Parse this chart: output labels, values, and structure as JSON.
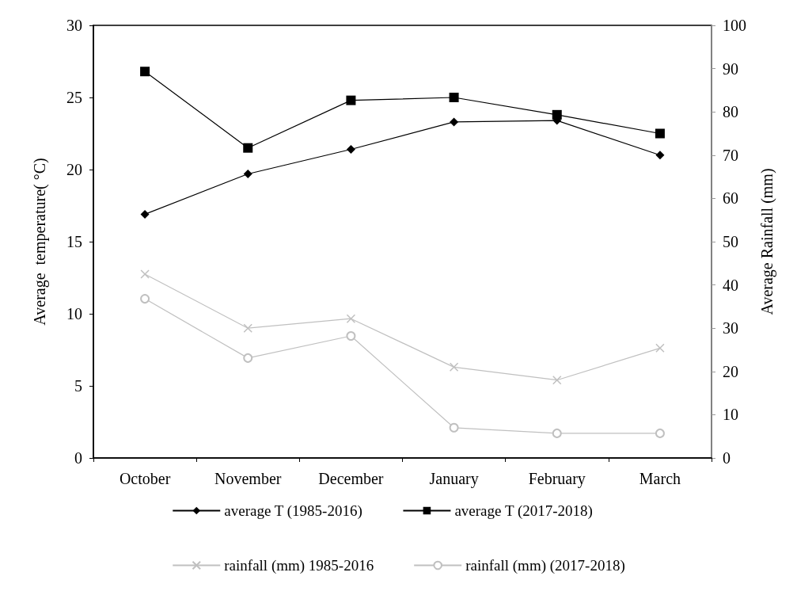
{
  "chart_data": {
    "type": "line",
    "ylabel": "Average  temperature( °C)",
    "y2label": "Average Rainfall (mm)",
    "categories": [
      "October",
      "November",
      "December",
      "January",
      "February",
      "March"
    ],
    "series": [
      {
        "name": "average T (1985-2016)",
        "color": "#000000",
        "marker": "diamond",
        "values": [
          16.9,
          19.7,
          21.4,
          23.3,
          23.4,
          21.0
        ]
      },
      {
        "name": "average T (2017-2018)",
        "color": "#000000",
        "marker": "square",
        "values": [
          26.8,
          21.5,
          24.8,
          25.0,
          23.8,
          22.5
        ]
      },
      {
        "name": "rainfall (mm) 1985-2016",
        "color": "#c0c0c0",
        "marker": "cross",
        "axis": "y2",
        "values": [
          42.5,
          30.0,
          32.2,
          21.0,
          18.0,
          25.4
        ]
      },
      {
        "name": "rainfall (mm) (2017-2018)",
        "color": "#c0c0c0",
        "marker": "circle",
        "axis": "y2",
        "values": [
          36.8,
          23.1,
          28.2,
          7.0,
          5.7,
          5.7
        ]
      }
    ],
    "ylim": [
      0,
      30
    ],
    "yticks": [
      0,
      5,
      10,
      15,
      20,
      25,
      30
    ],
    "y2lim": [
      0,
      100
    ],
    "y2ticks": [
      0,
      10,
      20,
      30,
      40,
      50,
      60,
      70,
      80,
      90,
      100
    ],
    "grid": false,
    "legend": "bottom",
    "line_style": "solid"
  }
}
